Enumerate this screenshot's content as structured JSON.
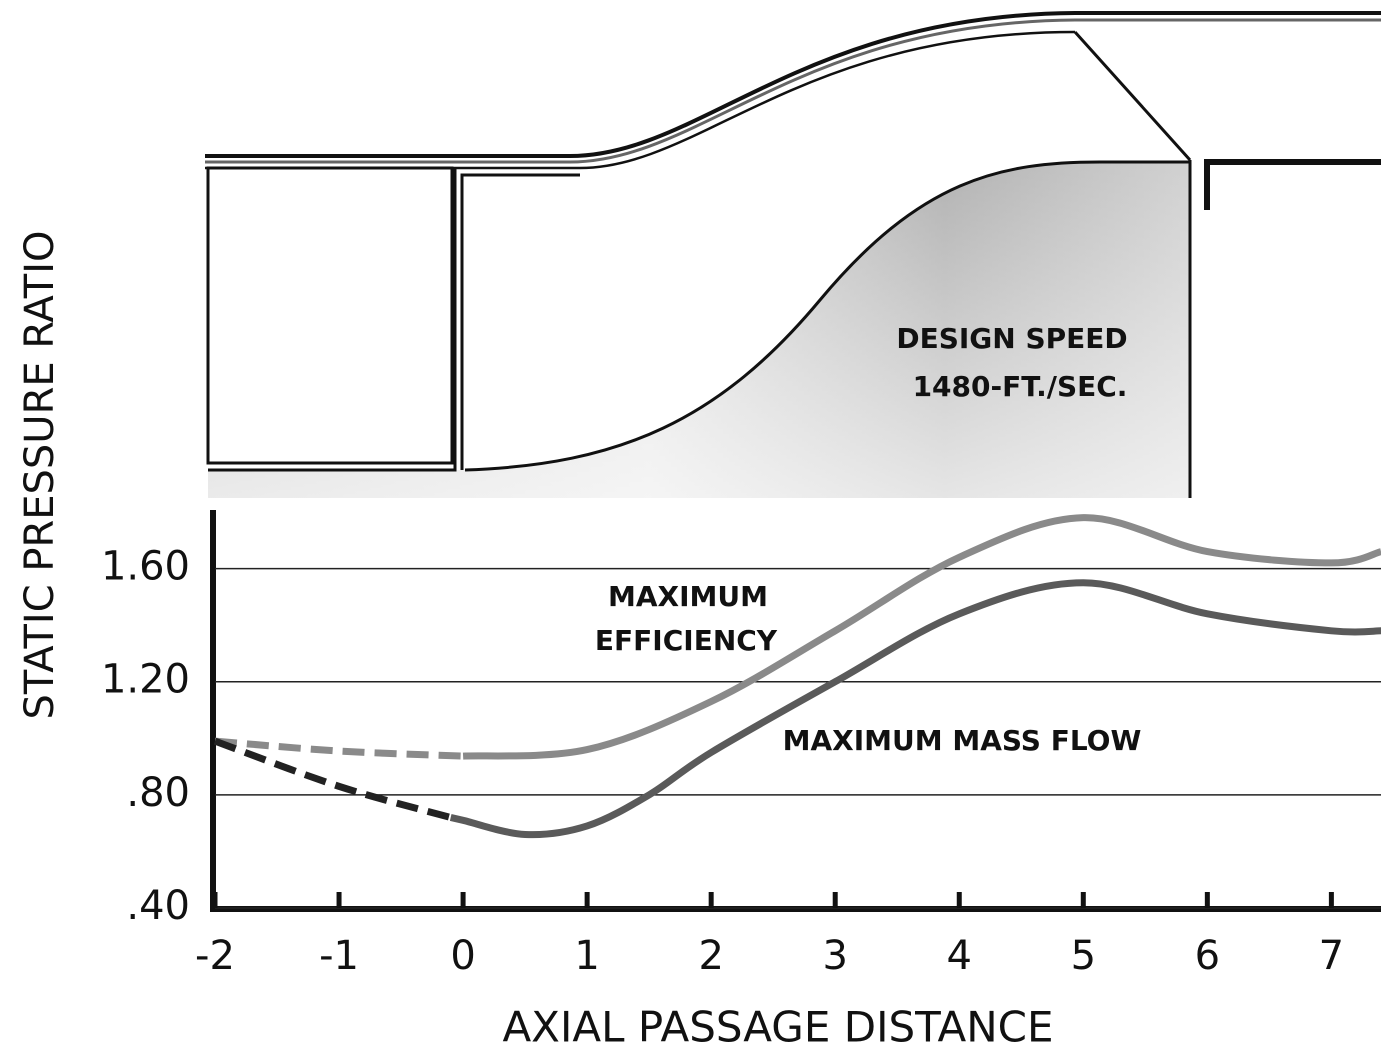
{
  "chart_data": {
    "type": "line",
    "xlabel": "AXIAL PASSAGE DISTANCE",
    "ylabel": "STATIC PRESSURE RATIO",
    "annotations": [
      "DESIGN SPEED",
      "1480-FT./SEC.",
      "MAXIMUM",
      "EFFICIENCY",
      "MAXIMUM MASS FLOW"
    ],
    "xlim": [
      -2,
      7.4
    ],
    "ylim": [
      0.4,
      1.8
    ],
    "xticks": [
      -2,
      -1,
      0,
      1,
      2,
      3,
      4,
      5,
      6,
      7
    ],
    "yticks": [
      {
        "value": 0.4,
        "label": ".40"
      },
      {
        "value": 0.8,
        "label": ".80"
      },
      {
        "value": 1.2,
        "label": "1.20"
      },
      {
        "value": 1.6,
        "label": "1.60"
      }
    ],
    "grid": true,
    "series": [
      {
        "color": "#8a8a8a",
        "dash_until": 0,
        "x": [
          -2,
          -1,
          0,
          1,
          2,
          3,
          4,
          5,
          6,
          7,
          7.4
        ],
        "values": [
          0.99,
          0.955,
          0.937,
          0.96,
          1.13,
          1.38,
          1.64,
          1.78,
          1.66,
          1.62,
          1.66
        ]
      },
      {
        "color": "#5a5a5a",
        "dash_until": -0.1,
        "x": [
          -2,
          -1,
          -0.1,
          0,
          0.5,
          1,
          1.5,
          2,
          3,
          4,
          5,
          6,
          7,
          7.4
        ],
        "values": [
          0.99,
          0.83,
          0.72,
          0.71,
          0.66,
          0.69,
          0.8,
          0.95,
          1.2,
          1.44,
          1.55,
          1.44,
          1.38,
          1.38
        ]
      }
    ]
  }
}
